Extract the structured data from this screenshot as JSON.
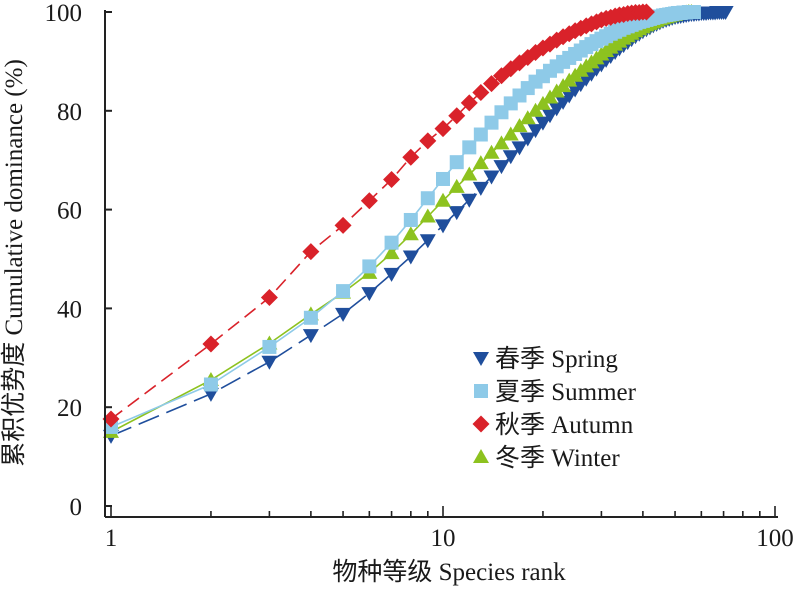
{
  "chart_data": {
    "type": "line",
    "xlabel": "物种等级 Species rank",
    "ylabel": "累积优势度 Cumulative dominance (%)",
    "x_scale": "log",
    "xlim": [
      0.9,
      100
    ],
    "ylim": [
      0,
      100
    ],
    "x_ticks": [
      1,
      10,
      100
    ],
    "y_ticks": [
      0,
      20,
      40,
      60,
      80,
      100
    ],
    "legend_position": "bottom-right",
    "series": [
      {
        "name": "春季 Spring",
        "marker": "triangle-down",
        "color": "#1f4e9c",
        "line_style": "long-dash",
        "x": [
          1,
          2,
          3,
          4,
          5,
          6,
          7,
          8,
          9,
          10,
          11,
          12,
          13,
          14,
          15,
          16,
          17,
          18,
          19,
          20,
          21,
          22,
          23,
          24,
          25,
          26,
          27,
          28,
          29,
          30,
          31,
          32,
          33,
          34,
          35,
          36,
          37,
          38,
          39,
          40,
          41,
          42,
          43,
          44,
          45,
          46,
          47,
          48,
          49,
          50,
          51,
          52,
          53,
          54,
          55,
          56,
          57,
          58,
          59,
          60,
          61,
          62,
          63,
          64,
          65,
          66,
          67,
          68,
          69,
          70,
          71
        ],
        "y": [
          14.2,
          22.7,
          29.2,
          34.6,
          38.9,
          43.1,
          47.0,
          50.5,
          53.8,
          56.8,
          59.5,
          62.0,
          64.4,
          66.7,
          68.8,
          70.8,
          72.6,
          74.4,
          76.1,
          77.6,
          79.1,
          80.5,
          81.8,
          83.1,
          84.3,
          85.4,
          86.5,
          87.5,
          88.5,
          89.4,
          90.3,
          91.1,
          91.9,
          92.6,
          93.3,
          93.9,
          94.5,
          95.1,
          95.6,
          96.1,
          96.5,
          96.9,
          97.3,
          97.6,
          97.9,
          98.2,
          98.4,
          98.6,
          98.8,
          99.0,
          99.1,
          99.2,
          99.3,
          99.4,
          99.5,
          99.6,
          99.6,
          99.7,
          99.7,
          99.8,
          99.8,
          99.8,
          99.9,
          99.9,
          99.9,
          99.9,
          100.0,
          100.0,
          100.0,
          100.0,
          100.0
        ]
      },
      {
        "name": "夏季 Summer",
        "marker": "square",
        "color": "#8ecae8",
        "line_style": "solid",
        "x": [
          1,
          2,
          3,
          4,
          5,
          6,
          7,
          8,
          9,
          10,
          11,
          12,
          13,
          14,
          15,
          16,
          17,
          18,
          19,
          20,
          21,
          22,
          23,
          24,
          25,
          26,
          27,
          28,
          29,
          30,
          31,
          32,
          33,
          34,
          35,
          36,
          37,
          38,
          39,
          40,
          41,
          42,
          43,
          44,
          45,
          46,
          47,
          48,
          49,
          50,
          51,
          52,
          53,
          54,
          55,
          56,
          57
        ],
        "y": [
          16.0,
          24.6,
          32.2,
          38.1,
          43.5,
          48.5,
          53.3,
          57.9,
          62.3,
          66.2,
          69.6,
          72.6,
          75.2,
          77.6,
          79.7,
          81.5,
          83.1,
          84.6,
          85.9,
          87.0,
          88.1,
          89.0,
          89.9,
          90.7,
          91.5,
          92.2,
          92.9,
          93.5,
          94.1,
          94.6,
          95.1,
          95.6,
          96.0,
          96.4,
          96.8,
          97.1,
          97.4,
          97.7,
          98.0,
          98.2,
          98.4,
          98.6,
          98.8,
          99.0,
          99.1,
          99.3,
          99.4,
          99.5,
          99.6,
          99.7,
          99.8,
          99.8,
          99.9,
          99.9,
          100.0,
          100.0,
          100.0
        ]
      },
      {
        "name": "秋季 Autumn",
        "marker": "diamond",
        "color": "#d9222a",
        "line_style": "dash",
        "x": [
          1,
          2,
          3,
          4,
          5,
          6,
          7,
          8,
          9,
          10,
          11,
          12,
          13,
          14,
          15,
          16,
          17,
          18,
          19,
          20,
          21,
          22,
          23,
          24,
          25,
          26,
          27,
          28,
          29,
          30,
          31,
          32,
          33,
          34,
          35,
          36,
          37,
          38,
          39,
          40,
          41
        ],
        "y": [
          17.6,
          32.8,
          42.2,
          51.5,
          56.8,
          61.8,
          66.1,
          70.6,
          73.9,
          76.4,
          79.0,
          81.6,
          83.7,
          85.5,
          87.1,
          88.5,
          89.7,
          90.8,
          91.8,
          92.7,
          93.5,
          94.3,
          95.0,
          95.6,
          96.2,
          96.7,
          97.2,
          97.6,
          98.0,
          98.4,
          98.7,
          98.9,
          99.2,
          99.4,
          99.5,
          99.7,
          99.8,
          99.9,
          99.9,
          100.0,
          100.0
        ]
      },
      {
        "name": "冬季 Winter",
        "marker": "triangle-up",
        "color": "#8dc21f",
        "line_style": "solid",
        "x": [
          1,
          2,
          3,
          4,
          5,
          6,
          7,
          8,
          9,
          10,
          11,
          12,
          13,
          14,
          15,
          16,
          17,
          18,
          19,
          20,
          21,
          22,
          23,
          24,
          25,
          26,
          27,
          28,
          29,
          30,
          31,
          32,
          33,
          34,
          35,
          36,
          37,
          38,
          39,
          40,
          41,
          42,
          43,
          44,
          45,
          46,
          47,
          48,
          49,
          50,
          51,
          52,
          53,
          54,
          55,
          56
        ],
        "y": [
          15.0,
          25.5,
          32.9,
          38.8,
          43.2,
          47.2,
          51.2,
          55.0,
          58.6,
          61.8,
          64.6,
          67.1,
          69.4,
          71.5,
          73.4,
          75.2,
          76.9,
          78.5,
          80.0,
          81.4,
          82.7,
          83.9,
          85.0,
          86.1,
          87.1,
          88.1,
          89.0,
          89.8,
          90.6,
          91.4,
          92.1,
          92.8,
          93.4,
          94.0,
          94.6,
          95.1,
          95.6,
          96.1,
          96.5,
          96.9,
          97.3,
          97.6,
          97.9,
          98.2,
          98.5,
          98.7,
          98.9,
          99.1,
          99.3,
          99.4,
          99.6,
          99.7,
          99.8,
          99.9,
          100.0,
          100.0
        ]
      }
    ]
  }
}
